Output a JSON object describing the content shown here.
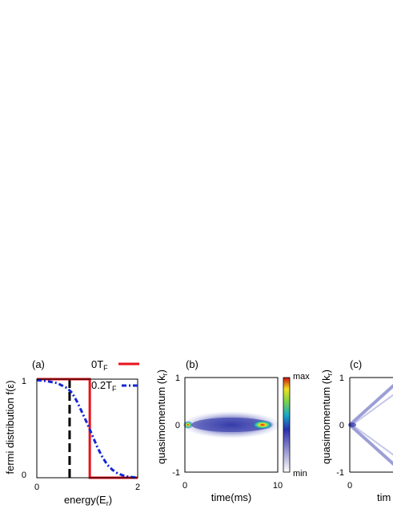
{
  "chart_data": [
    {
      "type": "line",
      "panel_label": "(a)",
      "xlabel": "energy(E",
      "xlabel_sub": "r",
      "xlabel_close": ")",
      "ylabel": "fermi distribution f(ε)",
      "xlim": [
        0,
        2
      ],
      "ylim": [
        0,
        1
      ],
      "xticks": [
        "0",
        "2"
      ],
      "yticks": [
        "0",
        "1"
      ],
      "vline_x": 0.65,
      "series": [
        {
          "name": "0T",
          "name_sub": "F",
          "color": "#e8121b",
          "style": "solid",
          "x": [
            0,
            1.05,
            1.05,
            2
          ],
          "y": [
            1,
            1,
            0,
            0
          ]
        },
        {
          "name": "0.2T",
          "name_sub": "F",
          "color": "#1427d6",
          "style": "dashdot",
          "x": [
            0,
            0.2,
            0.4,
            0.6,
            0.7,
            0.8,
            0.9,
            1.0,
            1.1,
            1.2,
            1.3,
            1.4,
            1.5,
            1.6,
            1.7,
            1.8,
            2.0
          ],
          "y": [
            0.99,
            0.98,
            0.96,
            0.91,
            0.86,
            0.77,
            0.66,
            0.55,
            0.43,
            0.31,
            0.21,
            0.13,
            0.08,
            0.045,
            0.025,
            0.012,
            0.0
          ]
        }
      ]
    },
    {
      "type": "heatmap",
      "panel_label": "(b)",
      "xlabel": "time(ms)",
      "ylabel": "quasimomentum (k",
      "ylabel_sub": "r",
      "ylabel_close": ")",
      "xlim": [
        0,
        10
      ],
      "ylim": [
        -1,
        1
      ],
      "xticks": [
        "0",
        "10"
      ],
      "yticks": [
        "-1",
        "0",
        "1"
      ],
      "colorbar": {
        "max_label": "max",
        "min_label": "min"
      }
    },
    {
      "type": "heatmap",
      "panel_label": "(c)",
      "xlabel": "tim",
      "ylabel": "quasimomentum (k",
      "ylabel_sub": "r",
      "ylabel_close": ")",
      "ylim": [
        -1,
        1
      ],
      "xticks": [
        "0"
      ],
      "yticks": [
        "-1",
        "0",
        "1"
      ]
    }
  ]
}
